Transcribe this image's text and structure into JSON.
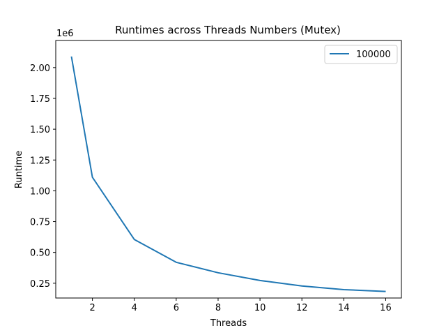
{
  "chart_data": {
    "type": "line",
    "title": "Runtimes across Threads Numbers (Mutex)",
    "xlabel": "Threads",
    "ylabel": "Runtime",
    "y_offset_label": "1e6",
    "x_ticks": [
      2,
      4,
      6,
      8,
      10,
      12,
      14,
      16
    ],
    "x_tick_labels": [
      "2",
      "4",
      "6",
      "8",
      "10",
      "12",
      "14",
      "16"
    ],
    "y_ticks": [
      0.25,
      0.5,
      0.75,
      1.0,
      1.25,
      1.5,
      1.75,
      2.0
    ],
    "y_tick_labels": [
      "0.25",
      "0.50",
      "0.75",
      "1.00",
      "1.25",
      "1.50",
      "1.75",
      "2.00"
    ],
    "xlim": [
      0.25,
      16.75
    ],
    "ylim": [
      0.13,
      2.22
    ],
    "grid": false,
    "legend_position": "top-right",
    "series": [
      {
        "name": "100000",
        "color": "#1f77b4",
        "x": [
          1,
          2,
          4,
          6,
          8,
          10,
          12,
          14,
          16
        ],
        "y": [
          2.09,
          1.11,
          0.605,
          0.42,
          0.335,
          0.272,
          0.228,
          0.198,
          0.183
        ]
      }
    ]
  }
}
